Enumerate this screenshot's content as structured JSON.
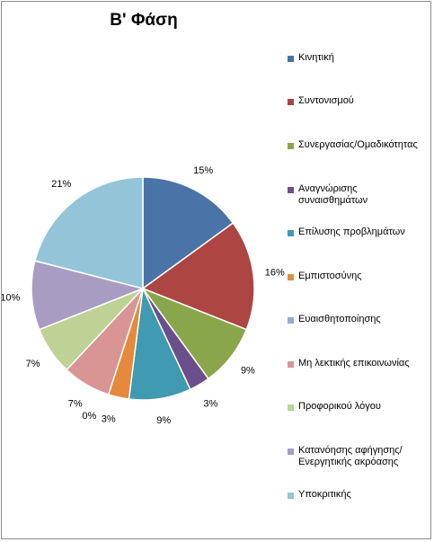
{
  "chart_data": {
    "type": "pie",
    "title": "Β' Φάση",
    "categories": [
      "Κινητική",
      "Συντονισμού",
      "Συνεργασίας/Ομαδικότητας",
      "Αναγνώρισης συναισθημάτων",
      "Επίλυσης προβλημάτων",
      "Εμπιστοσύνης",
      "Ευαισθητοποίησης",
      "Μη λεκτικής επικοινωνίας",
      "Προφορικού λόγου",
      "Κατανόησης αφήγησης/Ενεργητικής ακρόασης",
      "Υποκριτικής"
    ],
    "values": [
      15,
      16,
      9,
      3,
      9,
      3,
      0,
      7,
      7,
      10,
      21
    ],
    "value_labels": [
      "15%",
      "16%",
      "9%",
      "3%",
      "9%",
      "3%",
      "0%",
      "7%",
      "7%",
      "10%",
      "21%"
    ],
    "colors": [
      "#4a73a8",
      "#ad4542",
      "#8aa64a",
      "#6b4f8c",
      "#3f9ab2",
      "#e58a3c",
      "#93aad3",
      "#d99593",
      "#bdd294",
      "#a99cc2",
      "#93c4d7"
    ],
    "legend_position": "right"
  }
}
